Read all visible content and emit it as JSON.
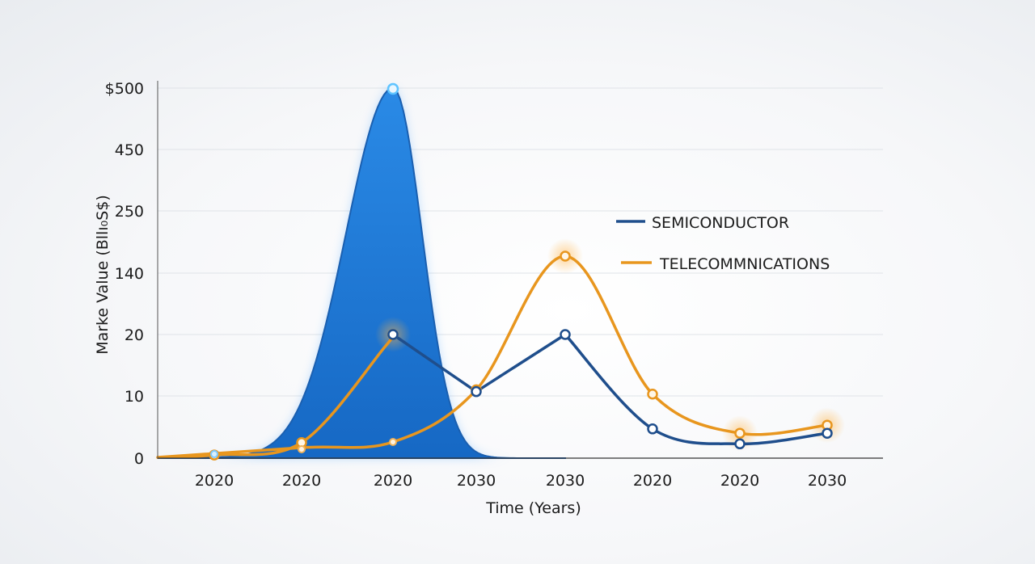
{
  "chart_data": {
    "type": "line",
    "xlabel": "Time (Years)",
    "ylabel": "Marke Value (Bllı₀S$)",
    "x_tick_labels": [
      "2020",
      "2020",
      "2020",
      "2030",
      "2030",
      "2020",
      "2020",
      "2030"
    ],
    "y_tick_labels": [
      "0",
      "10",
      "20",
      "140",
      "250",
      "450",
      "$500"
    ],
    "grid": true,
    "legend_position": "right",
    "series": [
      {
        "name": "SEMICONDUCTOR",
        "color": "#1f4e8c",
        "values": [
          0.3,
          1.5,
          20,
          10.7,
          20,
          4.7,
          2.3,
          4
        ]
      },
      {
        "name": "TELECOMMNICATIONS",
        "color": "#e8961e",
        "values": [
          0.5,
          2.5,
          20,
          11,
          170,
          10.3,
          4,
          5.3
        ]
      },
      {
        "name": "",
        "color": "#1e7bd4",
        "fill": true,
        "values": [
          0.6,
          1.5,
          500,
          0,
          0,
          0,
          0,
          0
        ]
      }
    ]
  }
}
